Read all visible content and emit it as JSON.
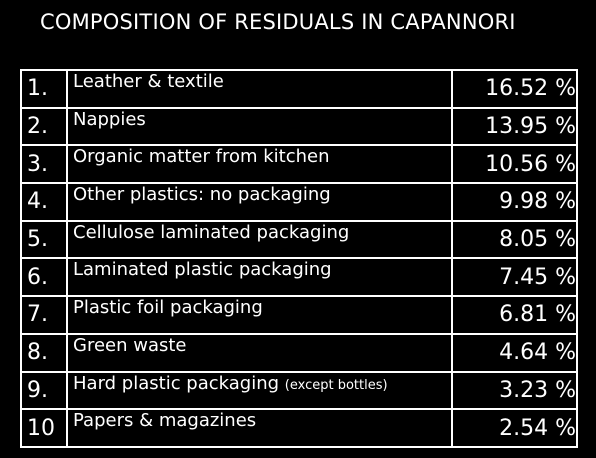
{
  "header": {
    "title": "COMPOSITION OF RESIDUALS IN CAPANNORI"
  },
  "table": {
    "rows": [
      {
        "rank": "1.",
        "label": "Leather & textile",
        "value": "16.52 %"
      },
      {
        "rank": "2.",
        "label": "Nappies",
        "value": "13.95 %"
      },
      {
        "rank": "3.",
        "label": "Organic matter from kitchen",
        "value": "10.56 %"
      },
      {
        "rank": "4.",
        "label": "Other plastics: no packaging",
        "value": "9.98 %"
      },
      {
        "rank": "5.",
        "label": "Cellulose laminated packaging",
        "value": "8.05 %"
      },
      {
        "rank": "6.",
        "label": "Laminated plastic packaging",
        "value": "7.45 %"
      },
      {
        "rank": "7.",
        "label": "Plastic foil packaging",
        "value": "6.81 %"
      },
      {
        "rank": "8.",
        "label": "Green waste",
        "value": "4.64 %"
      },
      {
        "rank": "9.",
        "label": "Hard plastic packaging",
        "note": "(except bottles)",
        "value": "3.23 %"
      },
      {
        "rank": "10",
        "label": "Papers & magazines",
        "value": "2.54 %"
      }
    ]
  }
}
